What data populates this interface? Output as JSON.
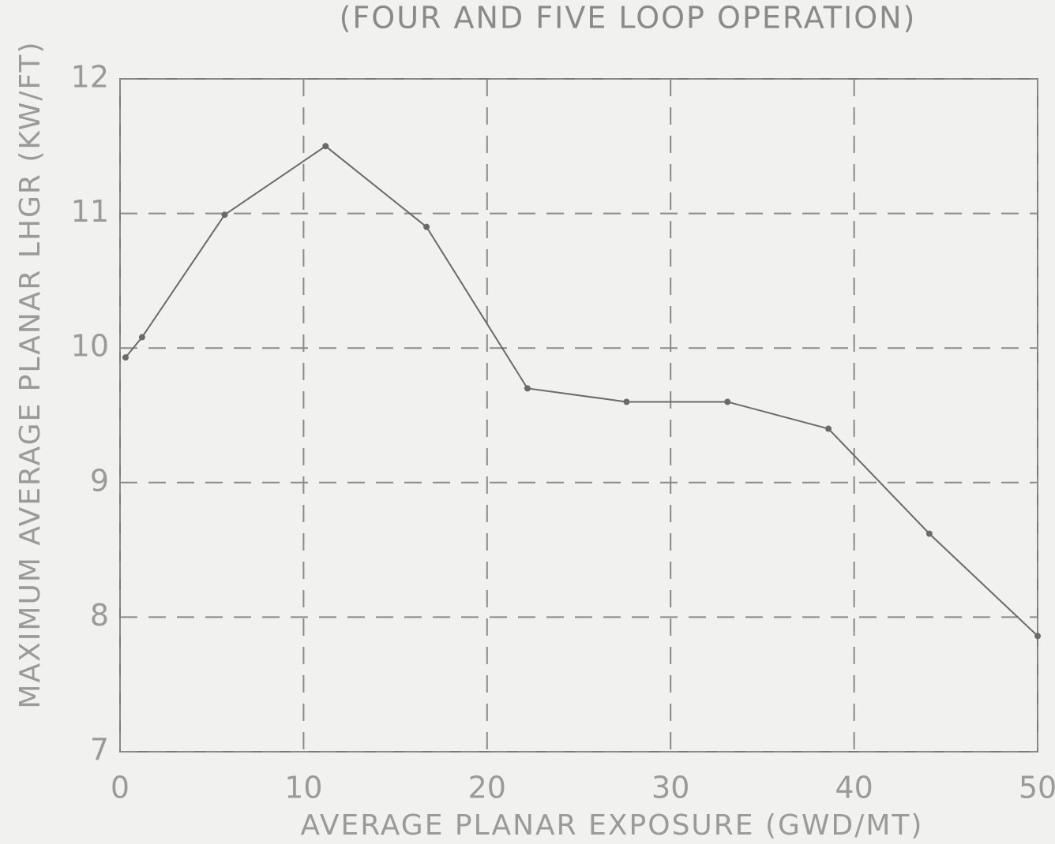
{
  "chart_data": {
    "type": "line",
    "title": "(FOUR AND FIVE LOOP OPERATION)",
    "x_label": "AVERAGE PLANAR EXPOSURE (GWD/MT)",
    "y_label": "MAXIMUM AVERAGE PLANAR LHGR (KW/FT)",
    "x": [
      0.3,
      1.2,
      5.7,
      11.2,
      16.7,
      22.2,
      27.6,
      33.1,
      38.6,
      44.1,
      50
    ],
    "series": [
      {
        "color": "#6a6a6a",
        "values": [
          9.93,
          10.08,
          10.99,
          11.5,
          10.9,
          9.7,
          9.6,
          9.6,
          9.4,
          8.62,
          7.86
        ]
      }
    ],
    "xlim": [
      0,
      50
    ],
    "ylim": [
      7,
      12
    ],
    "xticks": [
      0,
      10,
      20,
      30,
      40,
      50
    ],
    "yticks": [
      7,
      8,
      9,
      10,
      11,
      12
    ],
    "grid": true
  }
}
